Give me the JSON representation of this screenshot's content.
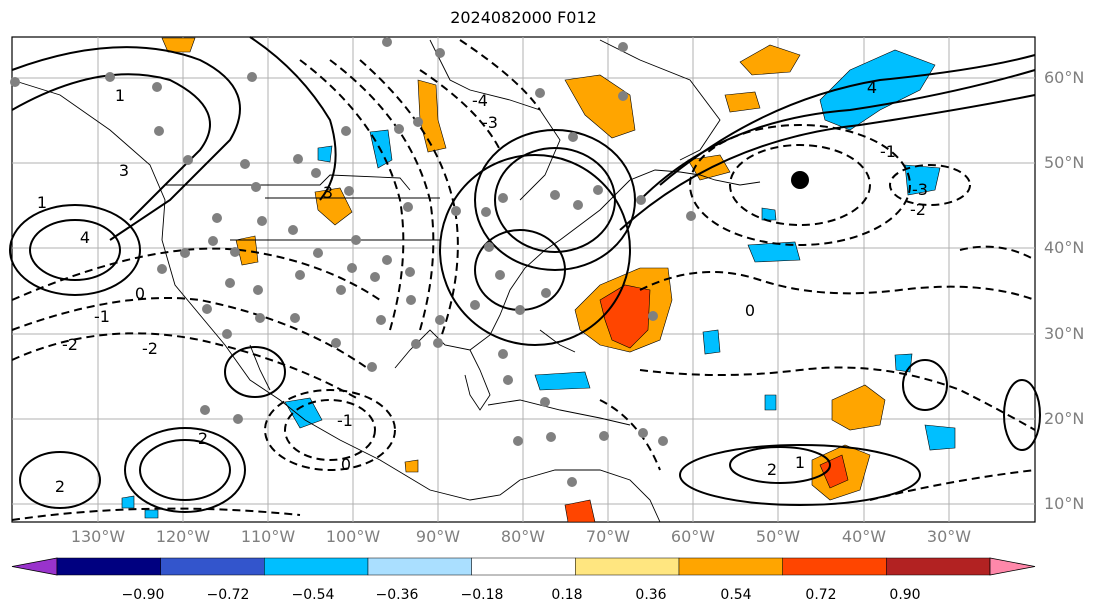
{
  "title": "2024082000 F012",
  "lat_labels": [
    "60°N",
    "50°N",
    "40°N",
    "30°N",
    "20°N",
    "10°N"
  ],
  "lon_labels": [
    "130°W",
    "120°W",
    "110°W",
    "100°W",
    "90°W",
    "80°W",
    "70°W",
    "60°W",
    "50°W",
    "40°W",
    "30°W"
  ],
  "contour_labels": [
    "4",
    "2",
    "1",
    "0",
    "-1",
    "-2",
    "-3",
    "-4",
    "3",
    "1",
    "2",
    "0",
    "-1",
    "-2",
    "4",
    "-3",
    "3",
    "1",
    "0",
    "2",
    "-1",
    "-2"
  ],
  "colorbar": {
    "colors": [
      "#9933cc",
      "#000080",
      "#3355cc",
      "#00bfff",
      "#aadfff",
      "#ffffff",
      "#ffe680",
      "#ffa500",
      "#ff4500",
      "#b22222",
      "#ff88aa"
    ],
    "tick_labels": [
      "−0.90",
      "−0.72",
      "−0.54",
      "−0.36",
      "−0.18",
      "0.18",
      "0.36",
      "0.54",
      "0.72",
      "0.90"
    ]
  },
  "colors": {
    "positive_fill": "#ffa500",
    "strong_positive_fill": "#ff4500",
    "negative_fill": "#00bfff",
    "station_dot": "#808080",
    "gridline": "#b0b0b0"
  }
}
